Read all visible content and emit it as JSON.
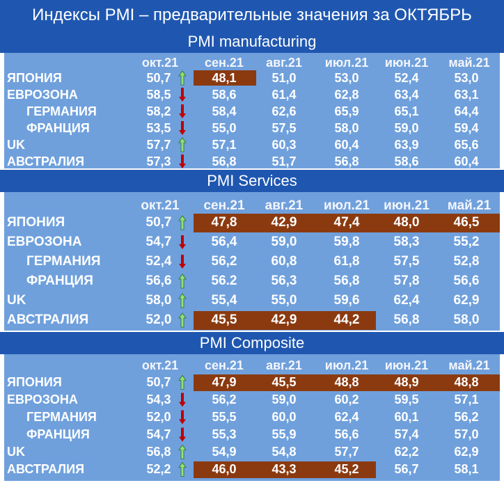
{
  "title": "Индексы PMI – предварительные значения за ОКТЯБРЬ",
  "columns": [
    "окт.21",
    "сен.21",
    "авг.21",
    "июл.21",
    "июн.21",
    "май.21"
  ],
  "colors": {
    "banner": "#1f57b0",
    "panel": "#6fa0dc",
    "highlight": "#8b3a10",
    "arrow_up": "#8fe07a",
    "arrow_down": "#c00000"
  },
  "sections": [
    {
      "name": "PMI manufacturing",
      "rows": [
        {
          "label": "ЯПОНИЯ",
          "values": [
            "50,7",
            "48,1",
            "51,0",
            "53,0",
            "52,4",
            "53,0"
          ],
          "trend": "up",
          "highlight": [
            1
          ]
        },
        {
          "label": "ЕВРОЗОНА",
          "values": [
            "58,5",
            "58,6",
            "61,4",
            "62,8",
            "63,4",
            "63,1"
          ],
          "trend": "down",
          "highlight": []
        },
        {
          "label": "ГЕРМАНИЯ",
          "values": [
            "58,2",
            "58,4",
            "62,6",
            "65,9",
            "65,1",
            "64,4"
          ],
          "trend": "down",
          "highlight": []
        },
        {
          "label": "ФРАНЦИЯ",
          "values": [
            "53,5",
            "55,0",
            "57,5",
            "58,0",
            "59,0",
            "59,4"
          ],
          "trend": "down",
          "highlight": []
        },
        {
          "label": "UK",
          "values": [
            "57,7",
            "57,1",
            "60,3",
            "60,4",
            "63,9",
            "65,6"
          ],
          "trend": "up",
          "highlight": []
        },
        {
          "label": "АВСТРАЛИЯ",
          "values": [
            "57,3",
            "56,8",
            "51,7",
            "56,8",
            "58,6",
            "60,4"
          ],
          "trend": "down",
          "highlight": []
        }
      ]
    },
    {
      "name": "PMI Services",
      "rows": [
        {
          "label": "ЯПОНИЯ",
          "values": [
            "50,7",
            "47,8",
            "42,9",
            "47,4",
            "48,0",
            "46,5"
          ],
          "trend": "up",
          "highlight": [
            1,
            2,
            3,
            4,
            5
          ]
        },
        {
          "label": "ЕВРОЗОНА",
          "values": [
            "54,7",
            "56,4",
            "59,0",
            "59,8",
            "58,3",
            "55,2"
          ],
          "trend": "down",
          "highlight": []
        },
        {
          "label": "ГЕРМАНИЯ",
          "values": [
            "52,4",
            "56,2",
            "60,8",
            "61,8",
            "57,5",
            "52,8"
          ],
          "trend": "down",
          "highlight": []
        },
        {
          "label": "ФРАНЦИЯ",
          "values": [
            "56,6",
            "56.2",
            "56,3",
            "56,8",
            "57,8",
            "56,6"
          ],
          "trend": "up",
          "highlight": []
        },
        {
          "label": "UK",
          "values": [
            "58,0",
            "55,4",
            "55,0",
            "59,6",
            "62,4",
            "62,9"
          ],
          "trend": "up",
          "highlight": []
        },
        {
          "label": "АВСТРАЛИЯ",
          "values": [
            "52,0",
            "45,5",
            "42,9",
            "44,2",
            "56,8",
            "58,0"
          ],
          "trend": "up",
          "highlight": [
            1,
            2,
            3
          ]
        }
      ]
    },
    {
      "name": "PMI Composite",
      "rows": [
        {
          "label": "ЯПОНИЯ",
          "values": [
            "50,7",
            "47,9",
            "45,5",
            "48,8",
            "48,9",
            "48,8"
          ],
          "trend": "up",
          "highlight": [
            1,
            2,
            3,
            4,
            5
          ]
        },
        {
          "label": "ЕВРОЗОНА",
          "values": [
            "54,3",
            "56,2",
            "59,0",
            "60,2",
            "59,5",
            "57,1"
          ],
          "trend": "down",
          "highlight": []
        },
        {
          "label": "ГЕРМАНИЯ",
          "values": [
            "52,0",
            "55,5",
            "60,0",
            "62,4",
            "60,1",
            "56,2"
          ],
          "trend": "down",
          "highlight": []
        },
        {
          "label": "ФРАНЦИЯ",
          "values": [
            "54,7",
            "55,3",
            "55,9",
            "56,6",
            "57,4",
            "57,0"
          ],
          "trend": "down",
          "highlight": []
        },
        {
          "label": "UK",
          "values": [
            "56,8",
            "54,9",
            "54,8",
            "57,7",
            "62,2",
            "62,9"
          ],
          "trend": "up",
          "highlight": []
        },
        {
          "label": "АВСТРАЛИЯ",
          "values": [
            "52,2",
            "46,0",
            "43,3",
            "45,2",
            "56,7",
            "58,1"
          ],
          "trend": "up",
          "highlight": [
            1,
            2,
            3
          ]
        }
      ]
    }
  ]
}
